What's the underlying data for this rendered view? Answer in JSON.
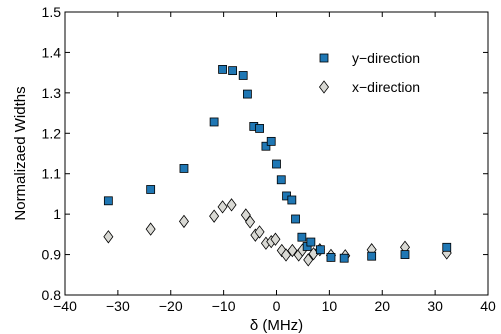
{
  "chart_data": {
    "type": "scatter",
    "xlabel": "δ (MHz)",
    "ylabel": "Normalizaed Widths",
    "xlim": [
      -40,
      40
    ],
    "ylim": [
      0.8,
      1.5
    ],
    "xticks": [
      -40,
      -30,
      -20,
      -10,
      0,
      10,
      20,
      30,
      40
    ],
    "yticks": [
      0.8,
      0.9,
      1.0,
      1.1,
      1.2,
      1.3,
      1.4,
      1.5
    ],
    "xtick_labels": [
      "−40",
      "−30",
      "−20",
      "−10",
      "0",
      "10",
      "20",
      "30",
      "40"
    ],
    "ytick_labels": [
      "0.8",
      "0.9",
      "1",
      "1.1",
      "1.2",
      "1.3",
      "1.4",
      "1.5"
    ],
    "grid": false,
    "legend_position": "top-right",
    "series": [
      {
        "name": "y−direction",
        "marker": "square",
        "color": "#1f77b4",
        "x": [
          -31.8,
          -23.8,
          -17.5,
          -11.8,
          -10.2,
          -8.3,
          -6.3,
          -5.5,
          -4.3,
          -3.2,
          -2.0,
          -1.0,
          0.0,
          0.9,
          1.9,
          2.9,
          3.6,
          4.8,
          5.8,
          6.5,
          8.3,
          10.3,
          12.8,
          18.0,
          24.3,
          32.2
        ],
        "y": [
          1.033,
          1.061,
          1.113,
          1.228,
          1.358,
          1.355,
          1.343,
          1.297,
          1.217,
          1.212,
          1.168,
          1.18,
          1.124,
          1.085,
          1.045,
          1.035,
          0.988,
          0.943,
          0.92,
          0.931,
          0.912,
          0.893,
          0.891,
          0.896,
          0.9,
          0.918
        ]
      },
      {
        "name": "x−direction",
        "marker": "diamond",
        "color": "#d9d9d4",
        "x": [
          -31.8,
          -23.8,
          -17.5,
          -11.8,
          -10.2,
          -8.5,
          -5.8,
          -5.0,
          -4.0,
          -3.2,
          -2.0,
          -1.0,
          -0.2,
          1.0,
          1.8,
          3.0,
          4.2,
          4.9,
          6.0,
          7.0,
          8.2,
          10.3,
          13.0,
          18.0,
          24.3,
          32.2
        ],
        "y": [
          0.944,
          0.963,
          0.982,
          0.995,
          1.018,
          1.023,
          0.998,
          0.981,
          0.948,
          0.956,
          0.928,
          0.932,
          0.938,
          0.91,
          0.899,
          0.91,
          0.899,
          0.911,
          0.887,
          0.902,
          0.912,
          0.898,
          0.897,
          0.912,
          0.918,
          0.904
        ]
      }
    ]
  }
}
